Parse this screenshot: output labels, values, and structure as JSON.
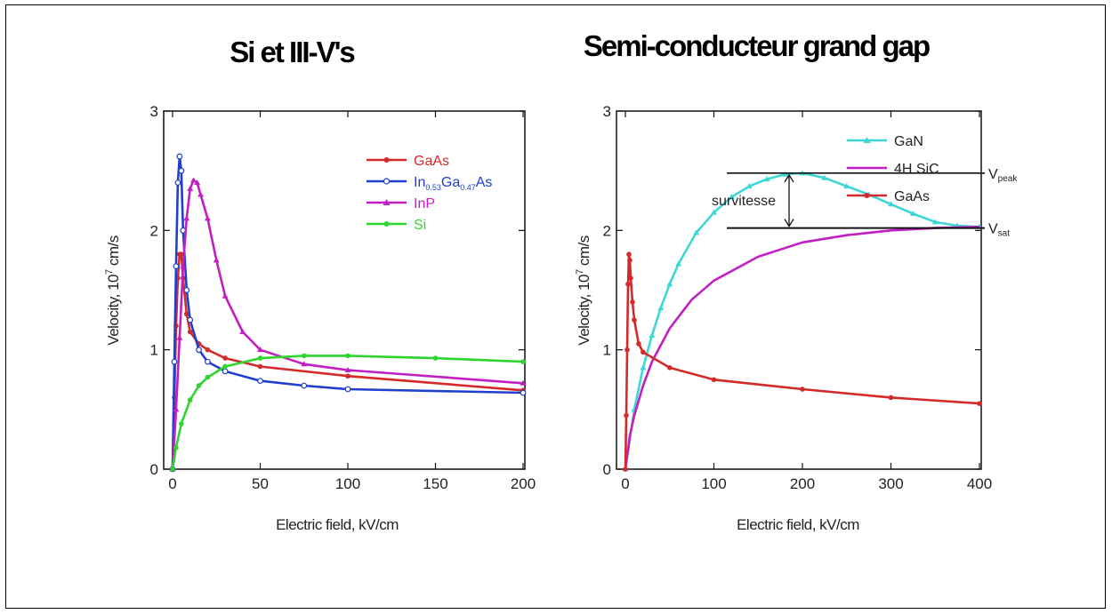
{
  "chart_data": [
    {
      "type": "line",
      "title": "Si et III-V's",
      "xlabel": "Electric field, kV/cm",
      "ylabel": "Velocity, 10⁷ cm/s",
      "xlim": [
        0,
        200
      ],
      "ylim": [
        0,
        3
      ],
      "x_ticks": [
        "0",
        "50",
        "100",
        "150",
        "200"
      ],
      "y_ticks": [
        "0",
        "1",
        "2",
        "3"
      ],
      "legend_position": "top-right",
      "series": [
        {
          "name": "GaAs",
          "color": "#d42a2a",
          "marker": "filled",
          "x": [
            0,
            1,
            2,
            3,
            4,
            5,
            6,
            8,
            10,
            15,
            20,
            30,
            50,
            100,
            200
          ],
          "y": [
            0,
            0.6,
            1.2,
            1.6,
            1.8,
            1.8,
            1.6,
            1.3,
            1.15,
            1.05,
            1.0,
            0.93,
            0.86,
            0.78,
            0.66
          ]
        },
        {
          "name": "In0.53Ga0.47As",
          "legend_parts": [
            "In",
            "0.53",
            "Ga",
            "0.47",
            "As"
          ],
          "color": "#1f3fcf",
          "marker": "open",
          "x": [
            0,
            1,
            2,
            3,
            4,
            5,
            6,
            8,
            10,
            15,
            20,
            30,
            50,
            75,
            100,
            200
          ],
          "y": [
            0,
            0.9,
            1.7,
            2.4,
            2.62,
            2.5,
            2.0,
            1.5,
            1.25,
            1.0,
            0.9,
            0.82,
            0.74,
            0.7,
            0.67,
            0.64
          ]
        },
        {
          "name": "InP",
          "color": "#c21fc2",
          "marker": "triangle",
          "x": [
            0,
            2,
            4,
            6,
            8,
            10,
            12,
            14,
            16,
            20,
            25,
            30,
            40,
            50,
            75,
            100,
            200
          ],
          "y": [
            0,
            0.5,
            1.1,
            1.7,
            2.1,
            2.35,
            2.42,
            2.4,
            2.3,
            2.1,
            1.75,
            1.45,
            1.15,
            1.0,
            0.88,
            0.83,
            0.72
          ]
        },
        {
          "name": "Si",
          "color": "#2fd42f",
          "marker": "filled",
          "x": [
            0,
            2,
            5,
            10,
            15,
            20,
            30,
            50,
            75,
            100,
            150,
            200
          ],
          "y": [
            0,
            0.18,
            0.38,
            0.58,
            0.7,
            0.77,
            0.86,
            0.93,
            0.95,
            0.95,
            0.93,
            0.9
          ]
        }
      ]
    },
    {
      "type": "line",
      "title": "Semi-conducteur grand gap",
      "xlabel": "Electric field, kV/cm",
      "ylabel": "Velocity, 10⁷ cm/s",
      "xlim": [
        0,
        400
      ],
      "ylim": [
        0,
        3
      ],
      "x_ticks": [
        "0",
        "100",
        "200",
        "300",
        "400"
      ],
      "y_ticks": [
        "0",
        "1",
        "2",
        "3"
      ],
      "legend_position": "top-right",
      "annotations": {
        "survitesse": "survitesse",
        "v_peak": {
          "main": "V",
          "sub": "peak",
          "value": 2.48
        },
        "v_sat": {
          "main": "V",
          "sub": "sat",
          "value": 2.02
        }
      },
      "series": [
        {
          "name": "GaN",
          "color": "#3fd6d6",
          "marker": "triangle",
          "x": [
            0,
            10,
            20,
            30,
            40,
            50,
            60,
            80,
            100,
            120,
            140,
            160,
            180,
            200,
            225,
            250,
            275,
            300,
            325,
            350,
            375,
            400
          ],
          "y": [
            0,
            0.5,
            0.85,
            1.12,
            1.35,
            1.55,
            1.72,
            1.98,
            2.15,
            2.28,
            2.37,
            2.43,
            2.47,
            2.48,
            2.44,
            2.37,
            2.3,
            2.22,
            2.14,
            2.07,
            2.04,
            2.03
          ]
        },
        {
          "name": "4H SiC",
          "color": "#c21fc2",
          "marker": "none",
          "x": [
            0,
            5,
            10,
            20,
            30,
            50,
            75,
            100,
            150,
            200,
            250,
            300,
            350,
            400
          ],
          "y": [
            0,
            0.28,
            0.45,
            0.7,
            0.9,
            1.18,
            1.42,
            1.58,
            1.78,
            1.9,
            1.96,
            2.0,
            2.02,
            2.03
          ]
        },
        {
          "name": "GaAs",
          "color": "#d42a2a",
          "marker": "filled",
          "x": [
            0,
            1,
            2,
            3,
            4,
            5,
            6,
            8,
            10,
            15,
            20,
            50,
            100,
            200,
            300,
            400
          ],
          "y": [
            0,
            0.45,
            1.0,
            1.55,
            1.8,
            1.75,
            1.6,
            1.4,
            1.25,
            1.05,
            0.98,
            0.85,
            0.75,
            0.67,
            0.6,
            0.55
          ]
        }
      ]
    }
  ]
}
